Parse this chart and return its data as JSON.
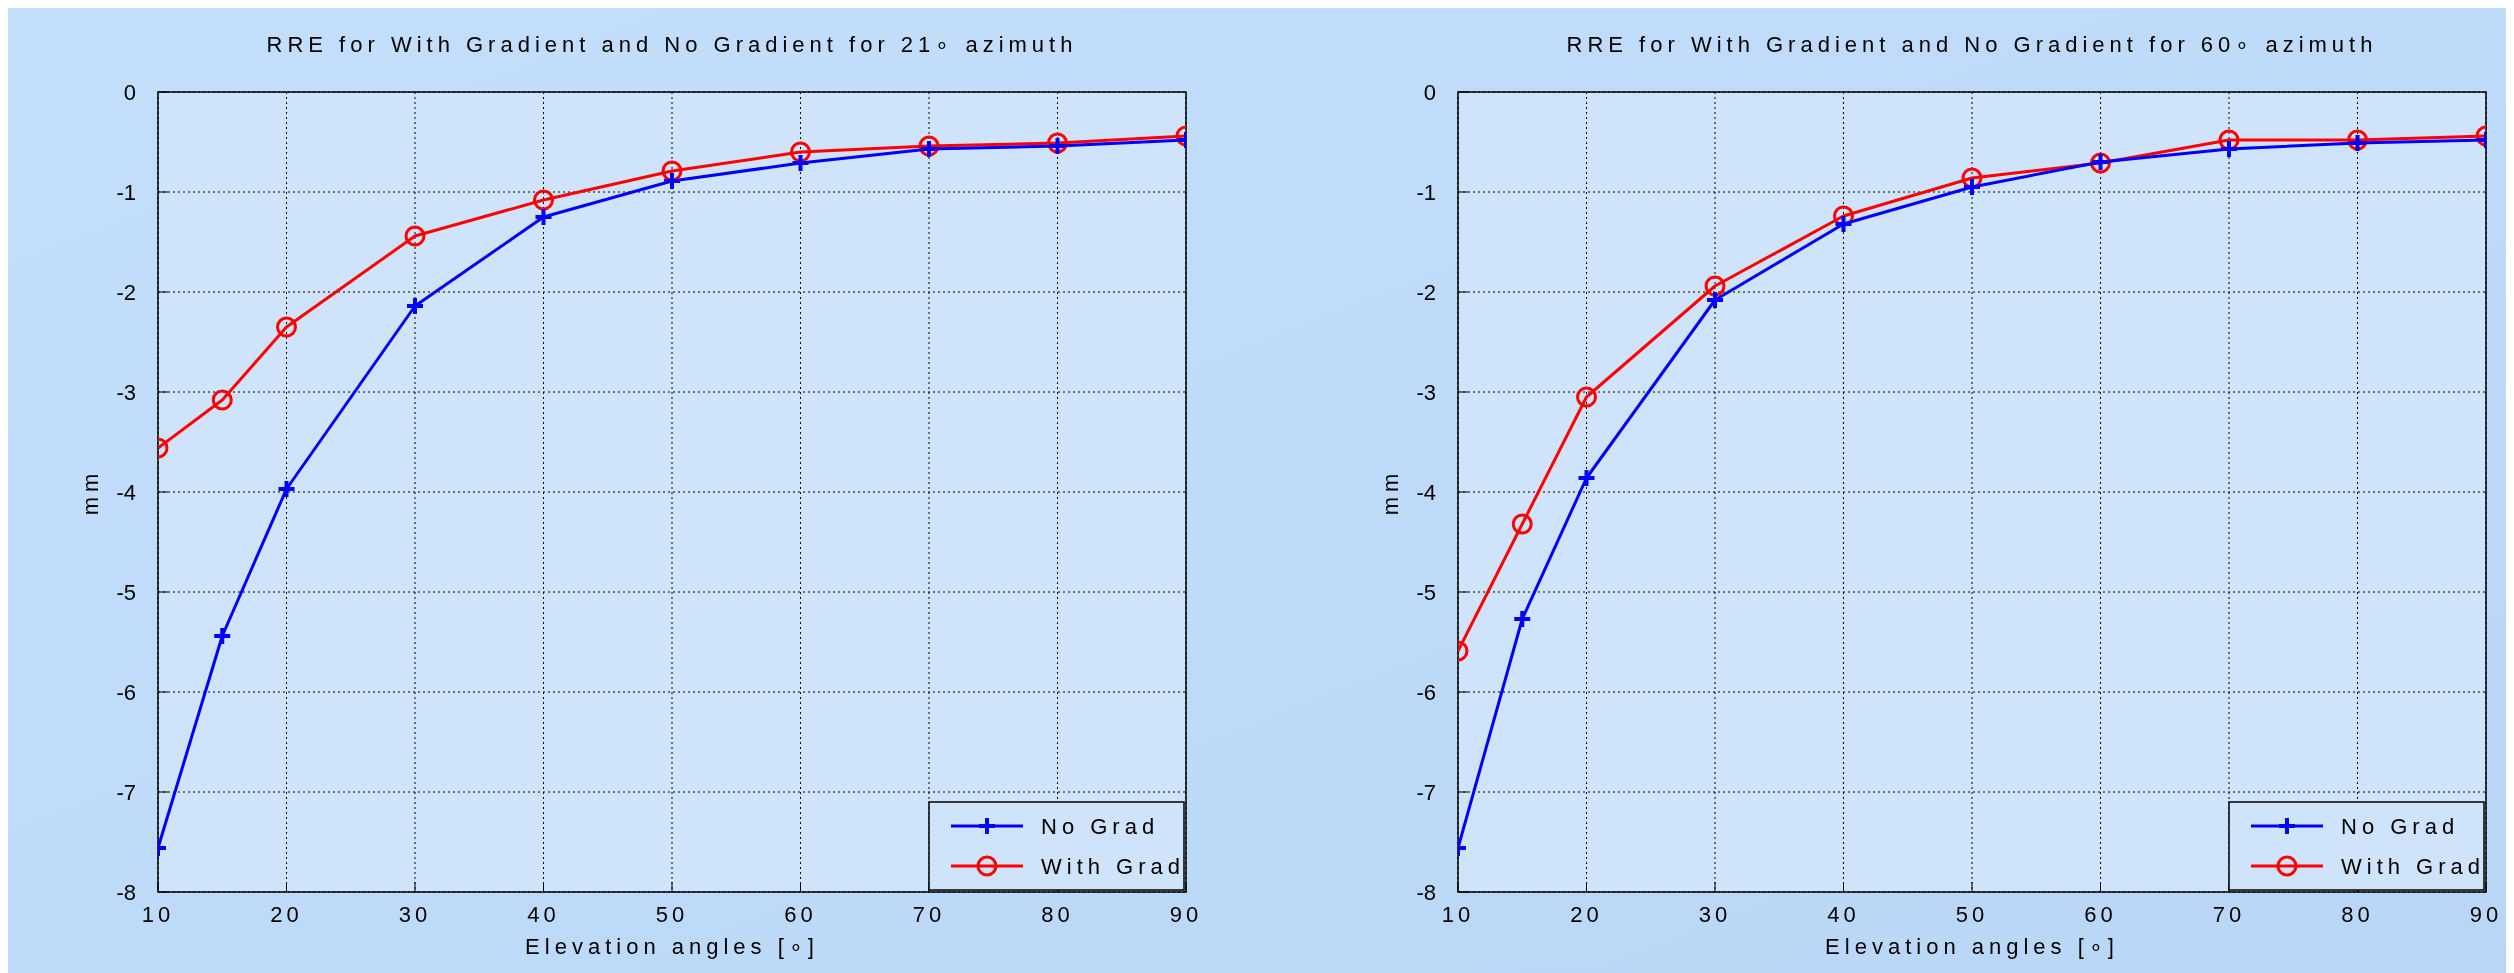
{
  "chart_data": [
    {
      "type": "line",
      "title": "RRE for With Gradient and No Gradient for 21∘ azimuth",
      "xlabel": "Elevation angles  [∘]",
      "ylabel": "mm",
      "x": [
        10,
        15,
        20,
        30,
        40,
        50,
        60,
        70,
        80,
        90
      ],
      "xlim": [
        10,
        90
      ],
      "xticks": [
        10,
        20,
        30,
        40,
        50,
        60,
        70,
        80,
        90
      ],
      "ylim": [
        -8,
        0
      ],
      "yticks": [
        -8,
        -7,
        -6,
        -5,
        -4,
        -3,
        -2,
        -1,
        0
      ],
      "grid": true,
      "legend": "bottom right",
      "series": [
        {
          "name": "No Grad",
          "color": "#0000ff",
          "marker": "cross",
          "values": [
            -7.56,
            -5.44,
            -3.97,
            -2.14,
            -1.25,
            -0.89,
            -0.71,
            -0.57,
            -0.54,
            -0.48
          ]
        },
        {
          "name": "With Grad",
          "color": "#ff0000",
          "marker": "circle",
          "values": [
            -3.56,
            -3.08,
            -2.35,
            -1.44,
            -1.08,
            -0.79,
            -0.6,
            -0.54,
            -0.51,
            -0.44
          ]
        }
      ]
    },
    {
      "type": "line",
      "title": "RRE for With Gradient and No Gradient for 60∘ azimuth",
      "xlabel": "Elevation angles  [∘]",
      "ylabel": "mm",
      "x": [
        10,
        15,
        20,
        30,
        40,
        50,
        60,
        70,
        80,
        90
      ],
      "xlim": [
        10,
        90
      ],
      "xticks": [
        10,
        20,
        30,
        40,
        50,
        60,
        70,
        80,
        90
      ],
      "ylim": [
        -8,
        0
      ],
      "yticks": [
        -8,
        -7,
        -6,
        -5,
        -4,
        -3,
        -2,
        -1,
        0
      ],
      "grid": true,
      "legend": "bottom right",
      "series": [
        {
          "name": "No Grad",
          "color": "#0000ff",
          "marker": "cross",
          "values": [
            -7.56,
            -5.27,
            -3.86,
            -2.08,
            -1.32,
            -0.95,
            -0.7,
            -0.57,
            -0.51,
            -0.48
          ]
        },
        {
          "name": "With Grad",
          "color": "#ff0000",
          "marker": "circle",
          "values": [
            -5.59,
            -4.32,
            -3.05,
            -1.94,
            -1.24,
            -0.86,
            -0.71,
            -0.48,
            -0.48,
            -0.44
          ]
        }
      ]
    }
  ]
}
